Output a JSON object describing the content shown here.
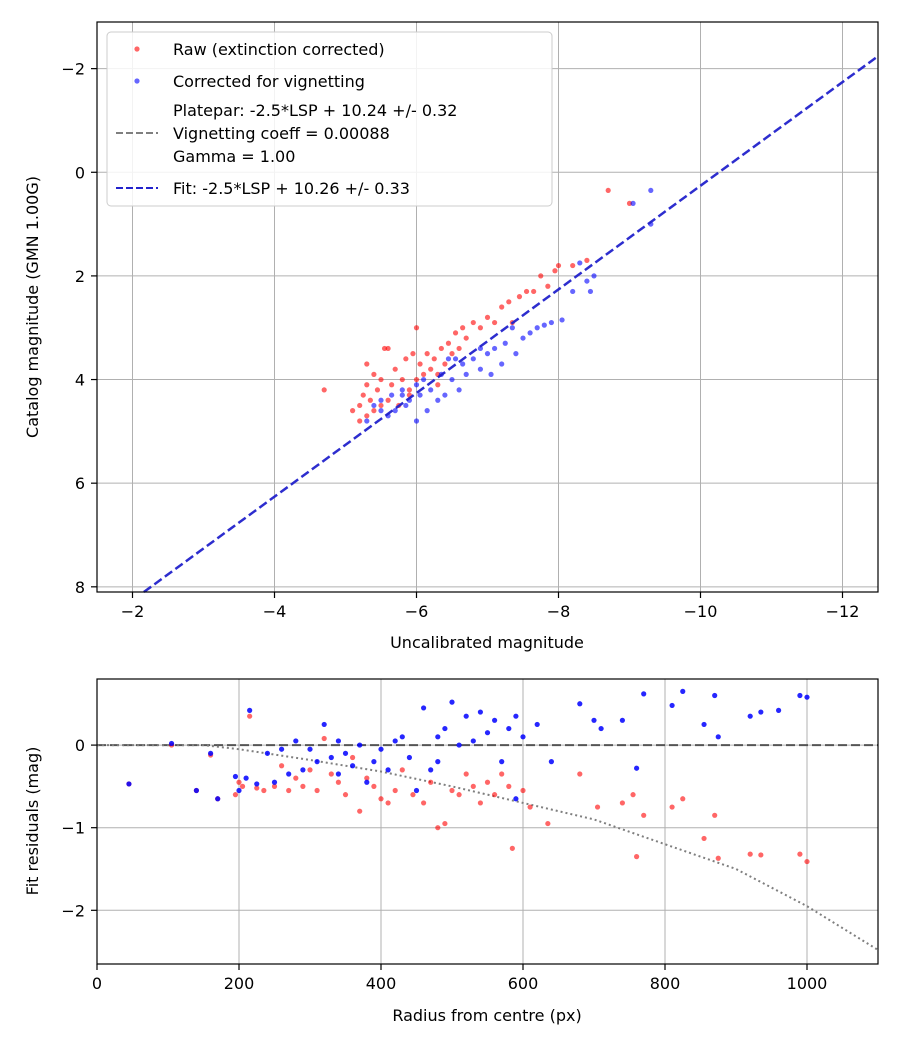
{
  "chart_data": [
    {
      "type": "scatter",
      "xlabel": "Uncalibrated magnitude",
      "ylabel": "Catalog magnitude (GMN 1.00G)",
      "xlim": [
        -1.5,
        -12.5
      ],
      "ylim": [
        8.1,
        -2.9
      ],
      "x_inverted": true,
      "y_inverted": true,
      "xticks": [
        -2,
        -4,
        -6,
        -8,
        -10,
        -12
      ],
      "yticks": [
        -2,
        0,
        2,
        4,
        6,
        8
      ],
      "grid": true,
      "legend_position": "upper-left",
      "legend": [
        {
          "label": "Raw (extinction corrected)",
          "marker": "dot",
          "color": "#ff0000"
        },
        {
          "label": "Corrected for vignetting",
          "marker": "dot",
          "color": "#0000ff"
        },
        {
          "label_lines": [
            "Platepar: -2.5*LSP + 10.24 +/- 0.32",
            "Vignetting coeff = 0.00088",
            "Gamma = 1.00"
          ],
          "marker": "dashed-line",
          "color": "#7f7f7f"
        },
        {
          "label": "Fit: -2.5*LSP + 10.26 +/- 0.33",
          "marker": "dashed-line",
          "color": "#2222cc"
        }
      ],
      "series": [
        {
          "name": "Raw (extinction corrected)",
          "color": "#ff0000",
          "points": [
            [
              -4.7,
              4.2
            ],
            [
              -5.1,
              4.6
            ],
            [
              -5.2,
              4.5
            ],
            [
              -5.25,
              4.3
            ],
            [
              -5.3,
              4.7
            ],
            [
              -5.35,
              4.4
            ],
            [
              -5.4,
              4.6
            ],
            [
              -5.45,
              4.2
            ],
            [
              -5.5,
              4.5
            ],
            [
              -5.3,
              3.7
            ],
            [
              -5.4,
              3.9
            ],
            [
              -5.5,
              4.0
            ],
            [
              -5.55,
              3.4
            ],
            [
              -5.6,
              4.4
            ],
            [
              -5.65,
              4.1
            ],
            [
              -5.7,
              3.8
            ],
            [
              -5.75,
              4.5
            ],
            [
              -5.8,
              4.0
            ],
            [
              -5.85,
              3.6
            ],
            [
              -5.9,
              4.2
            ],
            [
              -5.95,
              3.5
            ],
            [
              -6.0,
              4.0
            ],
            [
              -6.05,
              3.7
            ],
            [
              -6.1,
              3.9
            ],
            [
              -6.15,
              3.5
            ],
            [
              -6.2,
              3.8
            ],
            [
              -6.25,
              3.6
            ],
            [
              -6.3,
              4.1
            ],
            [
              -6.35,
              3.4
            ],
            [
              -6.4,
              3.7
            ],
            [
              -6.45,
              3.3
            ],
            [
              -6.5,
              3.5
            ],
            [
              -6.55,
              3.1
            ],
            [
              -6.6,
              3.4
            ],
            [
              -6.65,
              3.0
            ],
            [
              -6.7,
              3.2
            ],
            [
              -6.8,
              2.9
            ],
            [
              -6.9,
              3.0
            ],
            [
              -7.0,
              2.8
            ],
            [
              -7.1,
              2.9
            ],
            [
              -7.2,
              2.6
            ],
            [
              -7.3,
              2.5
            ],
            [
              -7.35,
              2.9
            ],
            [
              -7.45,
              2.4
            ],
            [
              -7.55,
              2.3
            ],
            [
              -7.65,
              2.3
            ],
            [
              -7.75,
              2.0
            ],
            [
              -7.85,
              2.2
            ],
            [
              -7.95,
              1.9
            ],
            [
              -8.0,
              1.8
            ],
            [
              -8.2,
              1.8
            ],
            [
              -8.4,
              1.7
            ],
            [
              -8.7,
              0.35
            ],
            [
              -9.0,
              0.6
            ],
            [
              -6.0,
              3.0
            ],
            [
              -5.6,
              3.4
            ],
            [
              -5.9,
              4.3
            ],
            [
              -5.2,
              4.8
            ],
            [
              -5.3,
              4.1
            ],
            [
              -6.3,
              3.9
            ]
          ]
        },
        {
          "name": "Corrected for vignetting",
          "color": "#0000ff",
          "points": [
            [
              -5.3,
              4.8
            ],
            [
              -5.4,
              4.5
            ],
            [
              -5.5,
              4.4
            ],
            [
              -5.6,
              4.7
            ],
            [
              -5.65,
              4.3
            ],
            [
              -5.7,
              4.6
            ],
            [
              -5.8,
              4.2
            ],
            [
              -5.85,
              4.5
            ],
            [
              -5.9,
              4.4
            ],
            [
              -6.0,
              4.8
            ],
            [
              -6.05,
              4.3
            ],
            [
              -6.1,
              4.0
            ],
            [
              -6.15,
              4.6
            ],
            [
              -6.2,
              4.2
            ],
            [
              -6.3,
              4.4
            ],
            [
              -6.35,
              3.9
            ],
            [
              -6.4,
              4.3
            ],
            [
              -6.5,
              4.0
            ],
            [
              -6.6,
              4.2
            ],
            [
              -6.65,
              3.7
            ],
            [
              -6.7,
              3.9
            ],
            [
              -6.8,
              3.6
            ],
            [
              -6.9,
              3.8
            ],
            [
              -7.0,
              3.5
            ],
            [
              -7.05,
              3.9
            ],
            [
              -7.1,
              3.4
            ],
            [
              -7.2,
              3.7
            ],
            [
              -7.25,
              3.3
            ],
            [
              -7.4,
              3.5
            ],
            [
              -7.5,
              3.2
            ],
            [
              -7.6,
              3.1
            ],
            [
              -7.7,
              3.0
            ],
            [
              -7.8,
              2.95
            ],
            [
              -7.9,
              2.9
            ],
            [
              -8.05,
              2.85
            ],
            [
              -8.2,
              2.3
            ],
            [
              -8.4,
              2.1
            ],
            [
              -8.45,
              2.3
            ],
            [
              -8.5,
              2.0
            ],
            [
              -8.3,
              1.75
            ],
            [
              -9.05,
              0.6
            ],
            [
              -9.3,
              0.35
            ],
            [
              -9.3,
              1.0
            ],
            [
              -6.0,
              4.1
            ],
            [
              -5.8,
              4.3
            ],
            [
              -6.45,
              3.6
            ],
            [
              -6.9,
              3.4
            ],
            [
              -6.55,
              3.6
            ],
            [
              -7.35,
              3.0
            ],
            [
              -5.5,
              4.6
            ]
          ]
        },
        {
          "name": "Fit: -2.5*LSP + 10.26 +/- 0.33",
          "color": "#2222cc",
          "line": [
            [
              -2.16,
              8.1
            ],
            [
              -12.5,
              -2.24
            ]
          ]
        }
      ]
    },
    {
      "type": "scatter",
      "xlabel": "Radius from centre (px)",
      "ylabel": "Fit residuals (mag)",
      "xlim": [
        0,
        1100
      ],
      "ylim": [
        -2.65,
        0.8
      ],
      "xticks": [
        0,
        200,
        400,
        600,
        800,
        1000
      ],
      "yticks": [
        -2,
        -1,
        0
      ],
      "grid": true,
      "reference_line": {
        "y": 0,
        "style": "dashed",
        "color": "#555555"
      },
      "series": [
        {
          "name": "Raw (extinction corrected)",
          "color": "#ff0000",
          "points": [
            [
              45,
              -0.47
            ],
            [
              105,
              0.0
            ],
            [
              140,
              -0.55
            ],
            [
              160,
              -0.12
            ],
            [
              170,
              -0.65
            ],
            [
              195,
              -0.6
            ],
            [
              200,
              -0.45
            ],
            [
              205,
              -0.5
            ],
            [
              215,
              0.35
            ],
            [
              225,
              -0.52
            ],
            [
              235,
              -0.55
            ],
            [
              250,
              -0.5
            ],
            [
              260,
              -0.25
            ],
            [
              270,
              -0.55
            ],
            [
              280,
              -0.4
            ],
            [
              290,
              -0.5
            ],
            [
              300,
              -0.3
            ],
            [
              310,
              -0.55
            ],
            [
              320,
              0.08
            ],
            [
              330,
              -0.35
            ],
            [
              340,
              -0.45
            ],
            [
              350,
              -0.6
            ],
            [
              360,
              -0.15
            ],
            [
              370,
              -0.8
            ],
            [
              380,
              -0.4
            ],
            [
              390,
              -0.5
            ],
            [
              400,
              -0.65
            ],
            [
              410,
              -0.7
            ],
            [
              420,
              -0.55
            ],
            [
              430,
              -0.3
            ],
            [
              445,
              -0.6
            ],
            [
              460,
              -0.7
            ],
            [
              470,
              -0.45
            ],
            [
              480,
              -1.0
            ],
            [
              490,
              -0.95
            ],
            [
              500,
              -0.55
            ],
            [
              510,
              -0.6
            ],
            [
              520,
              -0.35
            ],
            [
              530,
              -0.5
            ],
            [
              540,
              -0.7
            ],
            [
              550,
              -0.45
            ],
            [
              560,
              -0.6
            ],
            [
              570,
              -0.35
            ],
            [
              580,
              -0.5
            ],
            [
              585,
              -1.25
            ],
            [
              600,
              -0.55
            ],
            [
              610,
              -0.75
            ],
            [
              635,
              -0.95
            ],
            [
              680,
              -0.35
            ],
            [
              705,
              -0.75
            ],
            [
              740,
              -0.7
            ],
            [
              755,
              -0.6
            ],
            [
              760,
              -1.35
            ],
            [
              770,
              -0.85
            ],
            [
              810,
              -0.75
            ],
            [
              825,
              -0.65
            ],
            [
              855,
              -1.13
            ],
            [
              870,
              -0.85
            ],
            [
              875,
              -1.37
            ],
            [
              920,
              -1.32
            ],
            [
              935,
              -1.33
            ],
            [
              990,
              -1.32
            ],
            [
              1000,
              -1.41
            ]
          ]
        },
        {
          "name": "Corrected for vignetting",
          "color": "#0000ff",
          "points": [
            [
              45,
              -0.47
            ],
            [
              105,
              0.02
            ],
            [
              140,
              -0.55
            ],
            [
              160,
              -0.1
            ],
            [
              170,
              -0.65
            ],
            [
              195,
              -0.38
            ],
            [
              200,
              -0.55
            ],
            [
              210,
              -0.4
            ],
            [
              215,
              0.42
            ],
            [
              225,
              -0.47
            ],
            [
              240,
              -0.1
            ],
            [
              250,
              -0.45
            ],
            [
              260,
              -0.05
            ],
            [
              270,
              -0.35
            ],
            [
              280,
              0.05
            ],
            [
              290,
              -0.3
            ],
            [
              300,
              -0.05
            ],
            [
              310,
              -0.2
            ],
            [
              320,
              0.25
            ],
            [
              330,
              -0.15
            ],
            [
              340,
              0.05
            ],
            [
              350,
              -0.1
            ],
            [
              360,
              -0.25
            ],
            [
              370,
              0.0
            ],
            [
              380,
              -0.45
            ],
            [
              390,
              -0.2
            ],
            [
              400,
              -0.05
            ],
            [
              410,
              -0.3
            ],
            [
              420,
              0.05
            ],
            [
              430,
              0.1
            ],
            [
              440,
              -0.15
            ],
            [
              450,
              -0.55
            ],
            [
              460,
              0.45
            ],
            [
              470,
              -0.3
            ],
            [
              480,
              0.1
            ],
            [
              490,
              0.2
            ],
            [
              500,
              0.52
            ],
            [
              510,
              0.0
            ],
            [
              520,
              0.35
            ],
            [
              530,
              0.05
            ],
            [
              540,
              0.4
            ],
            [
              550,
              0.15
            ],
            [
              560,
              0.3
            ],
            [
              570,
              -0.2
            ],
            [
              580,
              0.2
            ],
            [
              590,
              0.35
            ],
            [
              600,
              0.1
            ],
            [
              620,
              0.25
            ],
            [
              640,
              -0.2
            ],
            [
              680,
              0.5
            ],
            [
              700,
              0.3
            ],
            [
              710,
              0.2
            ],
            [
              740,
              0.3
            ],
            [
              760,
              -0.28
            ],
            [
              770,
              0.62
            ],
            [
              810,
              0.48
            ],
            [
              825,
              0.65
            ],
            [
              855,
              0.25
            ],
            [
              870,
              0.6
            ],
            [
              875,
              0.1
            ],
            [
              920,
              0.35
            ],
            [
              935,
              0.4
            ],
            [
              960,
              0.42
            ],
            [
              990,
              0.6
            ],
            [
              1000,
              0.58
            ],
            [
              590,
              -0.65
            ],
            [
              480,
              -0.2
            ],
            [
              340,
              -0.35
            ]
          ]
        },
        {
          "name": "Vignetting model",
          "color": "#7f7f7f",
          "style": "dotted",
          "curve": [
            [
              0,
              0.0
            ],
            [
              100,
              0.0
            ],
            [
              150,
              0.0
            ],
            [
              200,
              -0.05
            ],
            [
              300,
              -0.18
            ],
            [
              400,
              -0.32
            ],
            [
              500,
              -0.5
            ],
            [
              600,
              -0.7
            ],
            [
              700,
              -0.9
            ],
            [
              800,
              -1.2
            ],
            [
              900,
              -1.5
            ],
            [
              1000,
              -1.95
            ],
            [
              1100,
              -2.48
            ]
          ]
        }
      ]
    }
  ]
}
